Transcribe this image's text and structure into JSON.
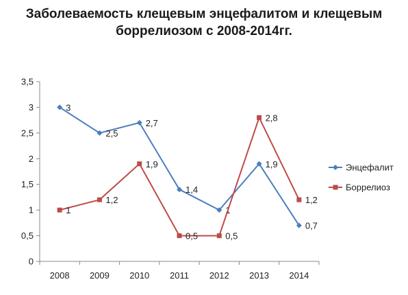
{
  "chart_data": {
    "type": "line",
    "title_lines": [
      "Заболеваемость клещевым энцефалитом и клещевым",
      "боррелиозом с 2008-2014гг."
    ],
    "categories": [
      "2008",
      "2009",
      "2010",
      "2011",
      "2012",
      "2013",
      "2014"
    ],
    "series": [
      {
        "name": "Энцефалит",
        "values": [
          3,
          2.5,
          2.7,
          1.4,
          1,
          1.9,
          0.7
        ],
        "labels": [
          "3",
          "2,5",
          "2,7",
          "1,4",
          "1",
          "1,9",
          "0,7"
        ],
        "color": "#4a7ebb",
        "marker": "diamond"
      },
      {
        "name": "Боррелиоз",
        "values": [
          1,
          1.2,
          1.9,
          0.5,
          0.5,
          2.8,
          1.2
        ],
        "labels": [
          "1",
          "1,2",
          "1,9",
          "0,5",
          "0,5",
          "2,8",
          "1,2"
        ],
        "color": "#be4b48",
        "marker": "square"
      }
    ],
    "y_ticks": [
      0,
      0.5,
      1,
      1.5,
      2,
      2.5,
      3,
      3.5
    ],
    "y_tick_labels": [
      "0",
      "0,5",
      "1",
      "1,5",
      "2",
      "2,5",
      "3",
      "3,5"
    ],
    "ylim": [
      0,
      3.5
    ],
    "grid": false,
    "legend_position": "right"
  }
}
